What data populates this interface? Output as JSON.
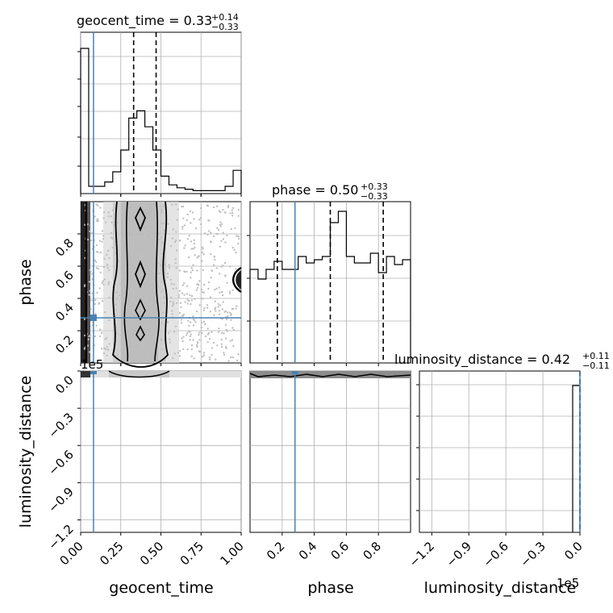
{
  "colors": {
    "truth": "#4682b4",
    "hist": "#000000",
    "grid": "#b0b0b0",
    "scatter": "#c0c0c0",
    "contour": "#000000",
    "density_dark": "#222222"
  },
  "chart_data": [
    {
      "type": "histogram",
      "panel": "1d-geocent_time",
      "title_prefix": "geocent_time = ",
      "title_value": "0.33",
      "title_plus": "+0.14",
      "title_minus": "−0.33",
      "xlim": [
        0,
        1
      ],
      "bins": [
        0.0,
        0.05,
        0.1,
        0.15,
        0.2,
        0.25,
        0.3,
        0.35,
        0.4,
        0.45,
        0.5,
        0.55,
        0.6,
        0.65,
        0.7,
        0.75,
        0.8,
        0.85,
        0.9,
        0.95,
        1.0
      ],
      "values": [
        1.0,
        0.05,
        0.05,
        0.08,
        0.15,
        0.3,
        0.52,
        0.57,
        0.46,
        0.3,
        0.12,
        0.06,
        0.04,
        0.03,
        0.02,
        0.02,
        0.02,
        0.02,
        0.05,
        0.16
      ],
      "quantiles": [
        0.33,
        0.47
      ],
      "truth": 0.08,
      "xticks": [
        "0.00",
        "0.25",
        "0.50",
        "0.75",
        "1.00"
      ],
      "xtick_values": [
        0,
        0.25,
        0.5,
        0.75,
        1.0
      ],
      "xlabel": "geocent_time"
    },
    {
      "type": "histogram",
      "panel": "1d-phase",
      "title_prefix": "phase = ",
      "title_value": "0.50",
      "title_plus": "+0.33",
      "title_minus": "−0.33",
      "xlim": [
        0,
        1
      ],
      "bins": [
        0.0,
        0.05,
        0.1,
        0.15,
        0.2,
        0.25,
        0.3,
        0.35,
        0.4,
        0.45,
        0.5,
        0.55,
        0.6,
        0.65,
        0.7,
        0.75,
        0.8,
        0.85,
        0.9,
        0.95,
        1.0
      ],
      "values": [
        0.58,
        0.52,
        0.58,
        0.63,
        0.58,
        0.58,
        0.66,
        0.62,
        0.64,
        0.66,
        0.87,
        0.94,
        0.66,
        0.62,
        0.62,
        0.68,
        0.56,
        0.66,
        0.61,
        0.64
      ],
      "quantiles": [
        0.17,
        0.5,
        0.83
      ],
      "truth": 0.28,
      "xticks": [
        "0.2",
        "0.4",
        "0.6",
        "0.8"
      ],
      "xtick_values": [
        0.2,
        0.4,
        0.6,
        0.8
      ],
      "xlabel": "phase"
    },
    {
      "type": "histogram",
      "panel": "1d-luminosity_distance",
      "title_prefix": "luminosity_distance = ",
      "title_value": "0.42",
      "title_plus": "+0.11",
      "title_minus": "−0.11",
      "xlim": [
        -130000,
        0
      ],
      "spike_at": 0,
      "truth": 0,
      "xticks": [
        "−1.2",
        "−0.9",
        "−0.6",
        "−0.3",
        "0.0"
      ],
      "xtick_values": [
        -120000,
        -90000,
        -60000,
        -30000,
        0
      ],
      "offset_label": "1e5",
      "xlabel": "luminosity_distance"
    },
    {
      "type": "scatter",
      "panel": "2d-geocent_time-phase",
      "xlim": [
        0,
        1
      ],
      "ylim": [
        0,
        1
      ],
      "truth": [
        0.08,
        0.28
      ],
      "yticks": [
        "0.2",
        "0.4",
        "0.6",
        "0.8"
      ],
      "ytick_values": [
        0.2,
        0.4,
        0.6,
        0.8
      ],
      "ylabel": "phase"
    },
    {
      "type": "scatter",
      "panel": "2d-geocent_time-luminosity_distance",
      "xlim": [
        0,
        1
      ],
      "ylim": [
        -130000,
        0
      ],
      "truth": [
        0.08,
        0
      ],
      "yticks": [
        "0.0",
        "−0.3",
        "−0.6",
        "−0.9",
        "−1.2"
      ],
      "ytick_values": [
        0,
        -30000,
        -60000,
        -90000,
        -120000
      ],
      "offset_label": "1e5",
      "ylabel": "luminosity_distance"
    },
    {
      "type": "scatter",
      "panel": "2d-phase-luminosity_distance",
      "xlim": [
        0,
        1
      ],
      "ylim": [
        -130000,
        0
      ],
      "truth": [
        0.28,
        0
      ]
    }
  ]
}
